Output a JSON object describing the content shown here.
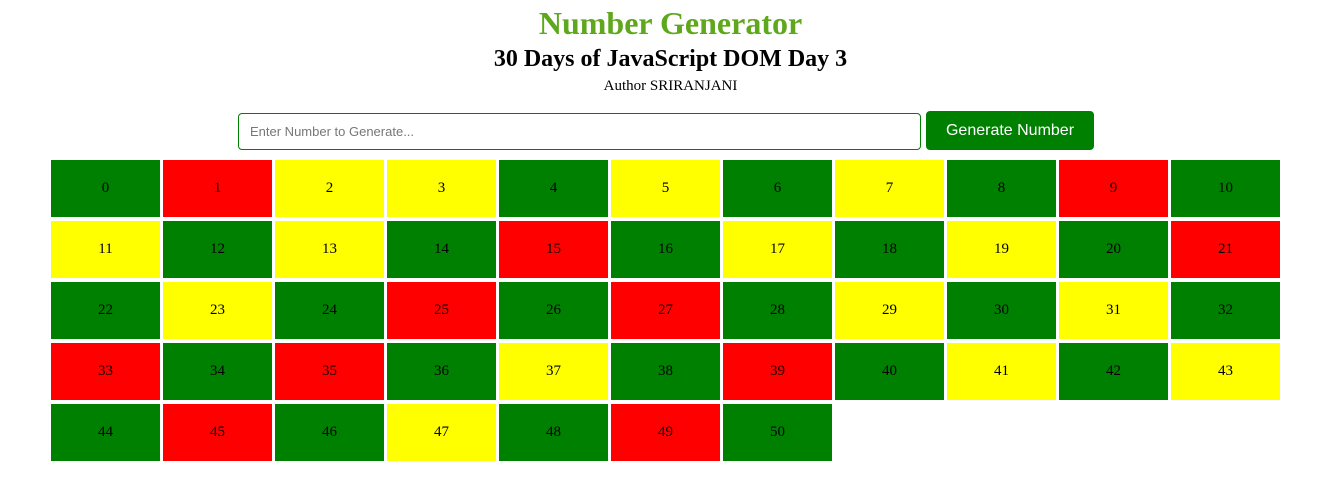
{
  "header": {
    "title": "Number Generator",
    "subtitle": "30 Days of JavaScript DOM Day 3",
    "author": "Author SRIRANJANI"
  },
  "controls": {
    "input_value": "",
    "input_placeholder": "Enter Number to Generate...",
    "button_label": "Generate Number"
  },
  "colors": {
    "title": "#5fa81e",
    "button": "#008000",
    "even": "#008000",
    "odd": "#ffff00",
    "prime": "#ff0000"
  },
  "numbers": [
    {
      "value": "0",
      "kind": "even"
    },
    {
      "value": "1",
      "kind": "prime"
    },
    {
      "value": "2",
      "kind": "odd"
    },
    {
      "value": "3",
      "kind": "odd"
    },
    {
      "value": "4",
      "kind": "even"
    },
    {
      "value": "5",
      "kind": "odd"
    },
    {
      "value": "6",
      "kind": "even"
    },
    {
      "value": "7",
      "kind": "odd"
    },
    {
      "value": "8",
      "kind": "even"
    },
    {
      "value": "9",
      "kind": "prime"
    },
    {
      "value": "10",
      "kind": "even"
    },
    {
      "value": "11",
      "kind": "odd"
    },
    {
      "value": "12",
      "kind": "even"
    },
    {
      "value": "13",
      "kind": "odd"
    },
    {
      "value": "14",
      "kind": "even"
    },
    {
      "value": "15",
      "kind": "prime"
    },
    {
      "value": "16",
      "kind": "even"
    },
    {
      "value": "17",
      "kind": "odd"
    },
    {
      "value": "18",
      "kind": "even"
    },
    {
      "value": "19",
      "kind": "odd"
    },
    {
      "value": "20",
      "kind": "even"
    },
    {
      "value": "21",
      "kind": "prime"
    },
    {
      "value": "22",
      "kind": "even"
    },
    {
      "value": "23",
      "kind": "odd"
    },
    {
      "value": "24",
      "kind": "even"
    },
    {
      "value": "25",
      "kind": "prime"
    },
    {
      "value": "26",
      "kind": "even"
    },
    {
      "value": "27",
      "kind": "prime"
    },
    {
      "value": "28",
      "kind": "even"
    },
    {
      "value": "29",
      "kind": "odd"
    },
    {
      "value": "30",
      "kind": "even"
    },
    {
      "value": "31",
      "kind": "odd"
    },
    {
      "value": "32",
      "kind": "even"
    },
    {
      "value": "33",
      "kind": "prime"
    },
    {
      "value": "34",
      "kind": "even"
    },
    {
      "value": "35",
      "kind": "prime"
    },
    {
      "value": "36",
      "kind": "even"
    },
    {
      "value": "37",
      "kind": "odd"
    },
    {
      "value": "38",
      "kind": "even"
    },
    {
      "value": "39",
      "kind": "prime"
    },
    {
      "value": "40",
      "kind": "even"
    },
    {
      "value": "41",
      "kind": "odd"
    },
    {
      "value": "42",
      "kind": "even"
    },
    {
      "value": "43",
      "kind": "odd"
    },
    {
      "value": "44",
      "kind": "even"
    },
    {
      "value": "45",
      "kind": "prime"
    },
    {
      "value": "46",
      "kind": "even"
    },
    {
      "value": "47",
      "kind": "odd"
    },
    {
      "value": "48",
      "kind": "even"
    },
    {
      "value": "49",
      "kind": "prime"
    },
    {
      "value": "50",
      "kind": "even"
    }
  ]
}
